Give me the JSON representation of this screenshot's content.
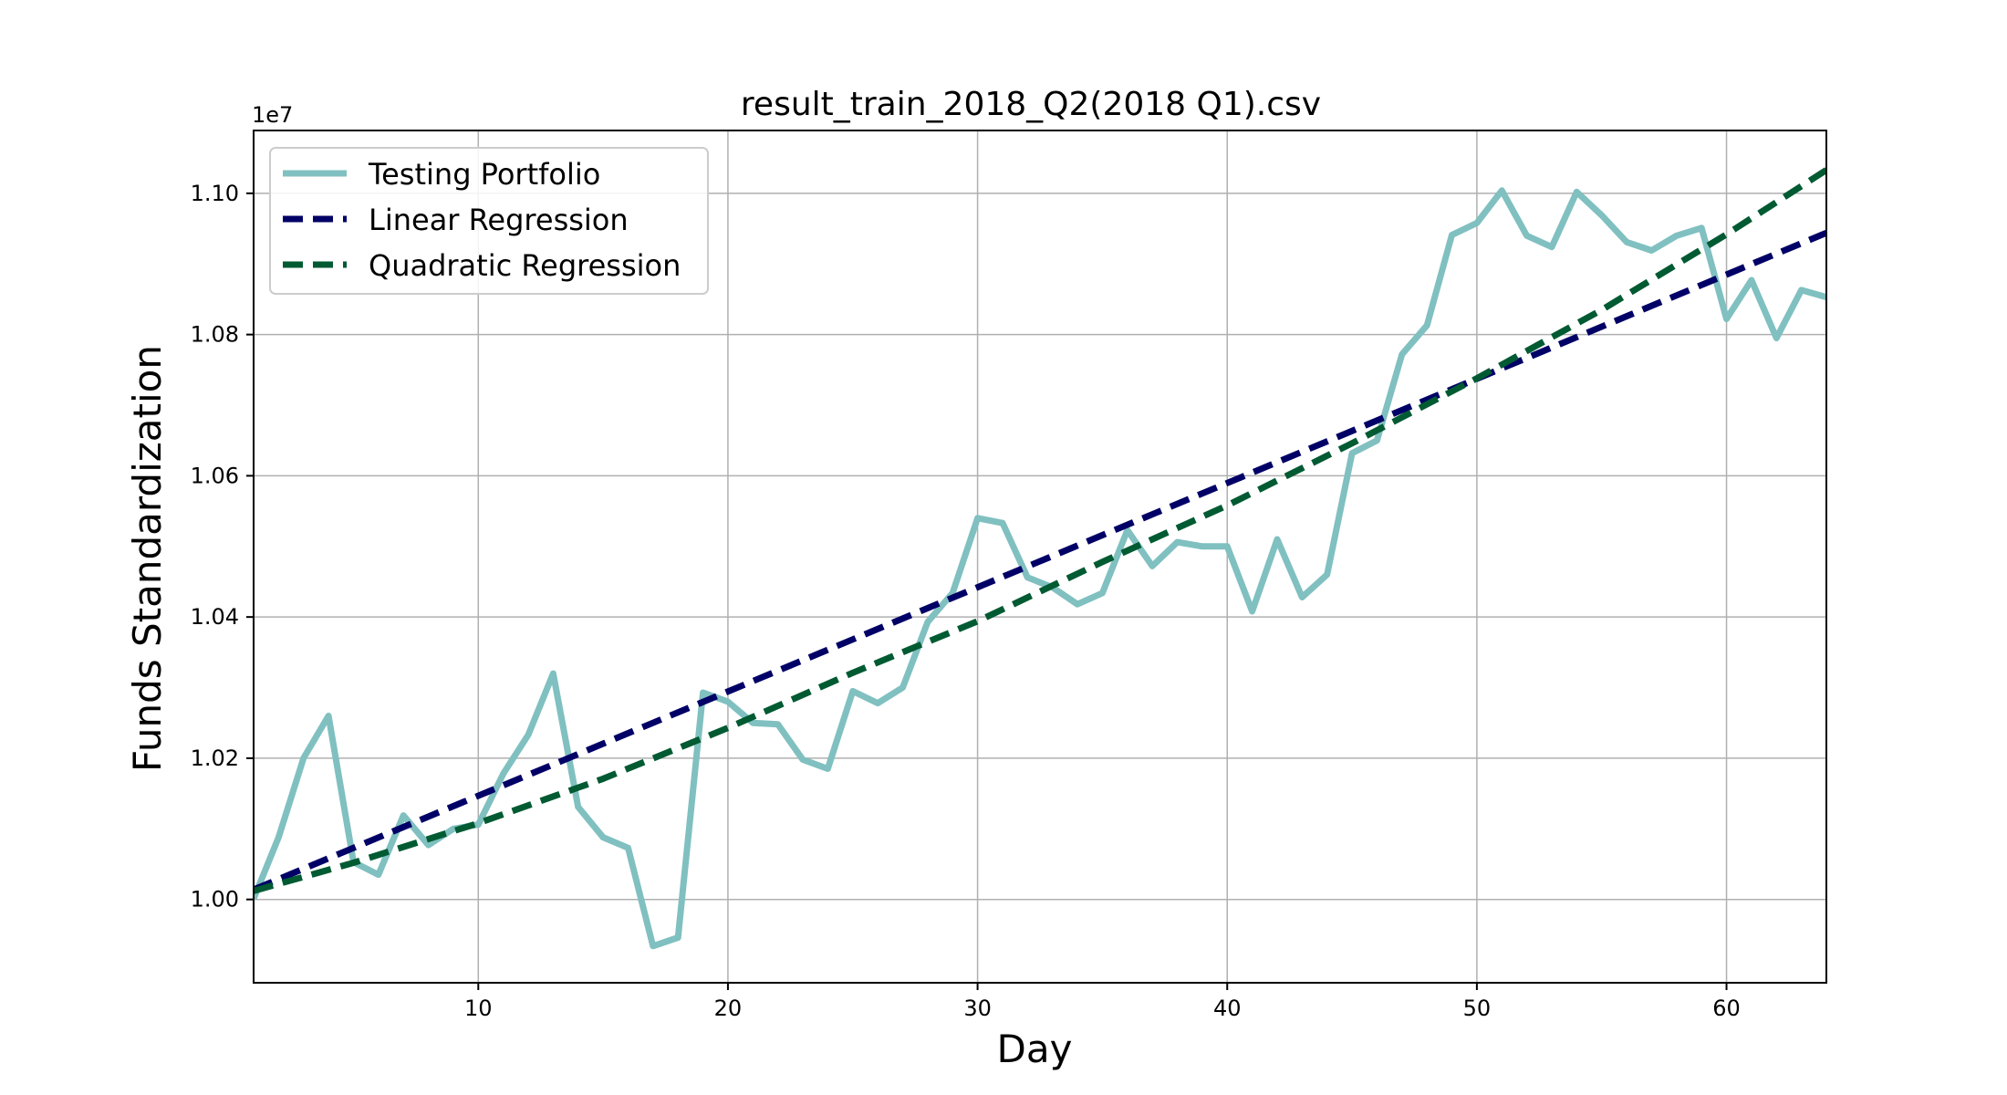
{
  "chart_data": {
    "type": "line",
    "title": "result_train_2018_Q2(2018 Q1).csv",
    "xlabel": "Day",
    "ylabel": "Funds Standardization",
    "offset_label": "1e7",
    "xlim": [
      1,
      64
    ],
    "ylim": [
      0.9882,
      1.1089
    ],
    "x_ticks": [
      10,
      20,
      30,
      40,
      50,
      60
    ],
    "y_ticks": [
      1.0,
      1.02,
      1.04,
      1.06,
      1.08,
      1.1
    ],
    "y_tick_labels": [
      "1.00",
      "1.02",
      "1.04",
      "1.06",
      "1.08",
      "1.10"
    ],
    "grid": true,
    "legend_position": "top-left",
    "series": [
      {
        "name": "Testing Portfolio",
        "color": "#80c0c0",
        "style": "solid",
        "x": [
          1,
          2,
          3,
          4,
          5,
          6,
          7,
          8,
          9,
          10,
          11,
          12,
          13,
          14,
          15,
          16,
          17,
          18,
          19,
          20,
          21,
          22,
          23,
          24,
          25,
          26,
          27,
          28,
          29,
          30,
          31,
          32,
          33,
          34,
          35,
          36,
          37,
          38,
          39,
          40,
          41,
          42,
          43,
          44,
          45,
          46,
          47,
          48,
          49,
          50,
          51,
          52,
          53,
          54,
          55,
          56,
          57,
          58,
          59,
          60,
          61,
          62,
          63,
          64
        ],
        "y": [
          1.0001,
          1.0088,
          1.02,
          1.026,
          1.0053,
          1.0035,
          1.0119,
          1.0077,
          1.01,
          1.0106,
          1.0178,
          1.0233,
          1.032,
          1.0131,
          1.0088,
          1.0073,
          0.9934,
          0.9946,
          1.0293,
          1.028,
          1.025,
          1.0248,
          1.0198,
          1.0185,
          1.0295,
          1.0278,
          1.03,
          1.0393,
          1.0434,
          1.054,
          1.0533,
          1.0456,
          1.0442,
          1.0418,
          1.0434,
          1.0523,
          1.0472,
          1.0506,
          1.05,
          1.05,
          1.0408,
          1.051,
          1.0428,
          1.046,
          1.0632,
          1.065,
          1.0772,
          1.0813,
          1.0941,
          1.0958,
          1.1004,
          1.094,
          1.0924,
          1.1002,
          1.0969,
          1.0931,
          1.0919,
          1.094,
          1.0951,
          1.0822,
          1.0877,
          1.0795,
          1.0863,
          1.0853
        ]
      },
      {
        "name": "Linear Regression",
        "color": "#000066",
        "style": "dashed",
        "x": [
          1,
          64
        ],
        "y": [
          1.0014,
          1.0944
        ]
      },
      {
        "name": "Quadratic Regression",
        "color": "#005a32",
        "style": "dashed",
        "x": [
          1,
          5,
          10,
          15,
          20,
          25,
          30,
          35,
          40,
          45,
          50,
          55,
          60,
          64
        ],
        "y": [
          1.0012,
          1.0052,
          1.0108,
          1.0171,
          1.0243,
          1.0321,
          1.0394,
          1.0478,
          1.0558,
          1.0646,
          1.0738,
          1.0835,
          1.0942,
          1.1033
        ]
      }
    ]
  }
}
